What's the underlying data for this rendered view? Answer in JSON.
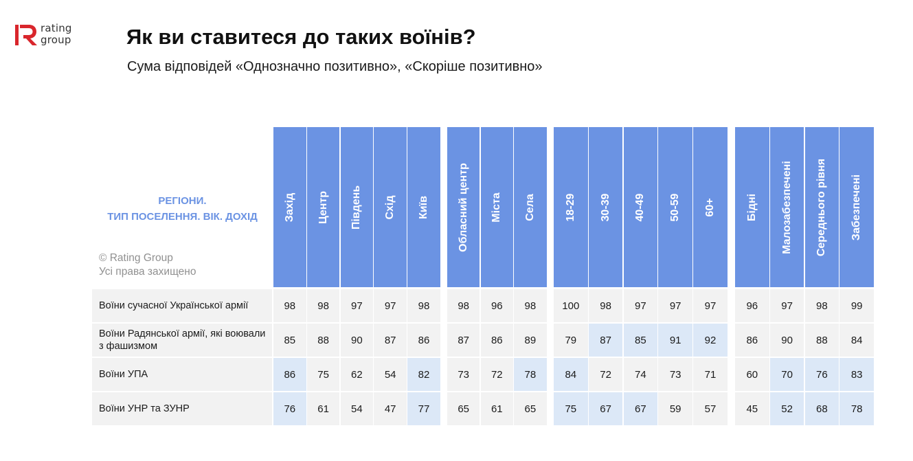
{
  "header": {
    "logo_text_1": "rating",
    "logo_text_2": "group",
    "title": "Як ви ставитеся до таких воїнів?",
    "subtitle": "Сума відповідей «Однозначно позитивно», «Скоріше позитивно»"
  },
  "table": {
    "corner_label_line1": "РЕГІОНИ.",
    "corner_label_line2": "ТИП ПОСЕЛЕННЯ. ВІК. ДОХІД",
    "copyright_line1": "© Rating Group",
    "copyright_line2": "Усі права захищено"
  },
  "colors": {
    "header_blue": "#6b93e3",
    "highlight": "#dce8f7",
    "cell_gray": "#f2f2f2",
    "logo_red": "#d9262c"
  },
  "chart_data": {
    "type": "table",
    "title": "Як ви ставитеся до таких воїнів?",
    "subtitle": "Сума відповідей «Однозначно позитивно», «Скоріше позитивно»",
    "column_groups": [
      {
        "name": "РЕГІОНИ",
        "columns": [
          "Захід",
          "Центр",
          "Південь",
          "Схід",
          "Київ"
        ]
      },
      {
        "name": "ТИП ПОСЕЛЕННЯ",
        "columns": [
          "Обласний центр",
          "Міста",
          "Села"
        ]
      },
      {
        "name": "ВІК",
        "columns": [
          "18-29",
          "30-39",
          "40-49",
          "50-59",
          "60+"
        ]
      },
      {
        "name": "ДОХІД",
        "columns": [
          "Бідні",
          "Малозабезпечені",
          "Середнього рівня",
          "Забезпечені"
        ]
      }
    ],
    "rows": [
      {
        "label": "Воїни сучасної Української армії",
        "values": [
          98,
          98,
          97,
          97,
          98,
          98,
          96,
          98,
          100,
          98,
          97,
          97,
          97,
          96,
          97,
          98,
          99
        ],
        "highlighted": [
          false,
          false,
          false,
          false,
          false,
          false,
          false,
          false,
          false,
          false,
          false,
          false,
          false,
          false,
          false,
          false,
          false
        ]
      },
      {
        "label": "Воїни Радянської армії, які воювали з фашизмом",
        "values": [
          85,
          88,
          90,
          87,
          86,
          87,
          86,
          89,
          79,
          87,
          85,
          91,
          92,
          86,
          90,
          88,
          84
        ],
        "highlighted": [
          false,
          false,
          false,
          false,
          false,
          false,
          false,
          false,
          false,
          true,
          true,
          true,
          true,
          false,
          false,
          false,
          false
        ]
      },
      {
        "label": "Воїни УПА",
        "values": [
          86,
          75,
          62,
          54,
          82,
          73,
          72,
          78,
          84,
          72,
          74,
          73,
          71,
          60,
          70,
          76,
          83
        ],
        "highlighted": [
          true,
          false,
          false,
          false,
          true,
          false,
          false,
          true,
          true,
          false,
          false,
          false,
          false,
          false,
          true,
          true,
          true
        ]
      },
      {
        "label": "Воїни УНР та ЗУНР",
        "values": [
          76,
          61,
          54,
          47,
          77,
          65,
          61,
          65,
          75,
          67,
          67,
          59,
          57,
          45,
          52,
          68,
          78
        ],
        "highlighted": [
          true,
          false,
          false,
          false,
          true,
          false,
          false,
          false,
          true,
          true,
          true,
          false,
          false,
          false,
          true,
          true,
          true
        ]
      }
    ]
  }
}
